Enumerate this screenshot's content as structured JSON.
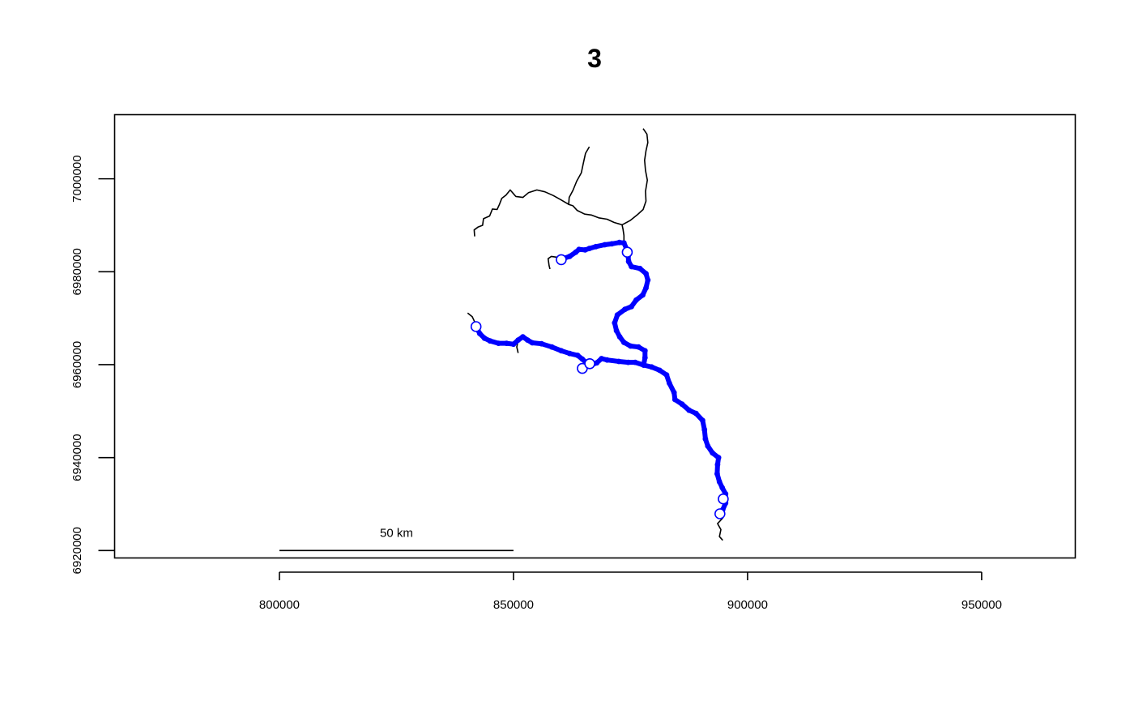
{
  "title": "3",
  "chart_data": {
    "type": "map",
    "title": "3",
    "xlim": [
      764800,
      970000
    ],
    "ylim": [
      6918400,
      7013800
    ],
    "x_ticks": [
      {
        "value": 800000,
        "label": "800000"
      },
      {
        "value": 850000,
        "label": "850000"
      },
      {
        "value": 900000,
        "label": "900000"
      },
      {
        "value": 950000,
        "label": "950000"
      }
    ],
    "y_ticks": [
      {
        "value": 6920000,
        "label": "6920000"
      },
      {
        "value": 6940000,
        "label": "6940000"
      },
      {
        "value": 6960000,
        "label": "6960000"
      },
      {
        "value": 6980000,
        "label": "6980000"
      },
      {
        "value": 7000000,
        "label": "7000000"
      }
    ],
    "scale_bar": {
      "x_start": 800000,
      "x_end": 850000,
      "y": 6920000,
      "label": "50 km"
    },
    "colors": {
      "river": "#000000",
      "highlight": "#0000ff",
      "site_fill": "#ffffff",
      "site_stroke": "#0000ff"
    },
    "rivers": [
      {
        "id": "east-branch",
        "points": [
          [
            894700,
            6922200
          ],
          [
            894000,
            6923000
          ],
          [
            894300,
            6924500
          ],
          [
            893600,
            6925800
          ],
          [
            894700,
            6927000
          ],
          [
            894800,
            6928500
          ],
          [
            895300,
            6930200
          ],
          [
            895300,
            6932200
          ],
          [
            894600,
            6933500
          ],
          [
            894000,
            6934800
          ],
          [
            893500,
            6936500
          ],
          [
            893600,
            6938500
          ],
          [
            893800,
            6940000
          ],
          [
            892500,
            6941000
          ],
          [
            891500,
            6942500
          ],
          [
            891000,
            6944000
          ],
          [
            890800,
            6946000
          ],
          [
            890400,
            6948000
          ],
          [
            889000,
            6949500
          ],
          [
            887500,
            6950200
          ],
          [
            886000,
            6951500
          ],
          [
            884500,
            6952500
          ],
          [
            884300,
            6954000
          ],
          [
            883300,
            6956000
          ],
          [
            882700,
            6957800
          ],
          [
            881200,
            6958800
          ],
          [
            879500,
            6959500
          ],
          [
            877800,
            6959900
          ],
          [
            878100,
            6961500
          ],
          [
            878100,
            6963000
          ],
          [
            876700,
            6963800
          ],
          [
            875000,
            6964000
          ],
          [
            873600,
            6964800
          ],
          [
            872700,
            6966000
          ],
          [
            872000,
            6967300
          ],
          [
            871600,
            6969000
          ],
          [
            872200,
            6970700
          ],
          [
            873800,
            6971900
          ],
          [
            875200,
            6972500
          ],
          [
            876200,
            6973900
          ],
          [
            877600,
            6975000
          ],
          [
            878300,
            6976500
          ],
          [
            878700,
            6978200
          ],
          [
            878300,
            6979600
          ],
          [
            877000,
            6980700
          ],
          [
            875200,
            6981100
          ],
          [
            874600,
            6982200
          ],
          [
            874500,
            6983300
          ],
          [
            873800,
            6984700
          ],
          [
            873600,
            6986200
          ],
          [
            873600,
            6987800
          ],
          [
            873400,
            6989100
          ],
          [
            873200,
            6990100
          ],
          [
            874900,
            6991000
          ],
          [
            876400,
            6992200
          ],
          [
            877700,
            6993400
          ],
          [
            878300,
            6995200
          ],
          [
            878200,
            6997300
          ],
          [
            878600,
            6999700
          ],
          [
            878200,
            7001800
          ],
          [
            878000,
            7004000
          ],
          [
            878300,
            7006000
          ],
          [
            878700,
            7007800
          ],
          [
            878500,
            7009600
          ],
          [
            877700,
            7010800
          ]
        ]
      },
      {
        "id": "north-branch",
        "points": [
          [
            873200,
            6990100
          ],
          [
            871500,
            6990600
          ],
          [
            870000,
            6991300
          ],
          [
            868200,
            6991600
          ],
          [
            866600,
            6992200
          ],
          [
            865200,
            6992400
          ],
          [
            863600,
            6993200
          ],
          [
            862700,
            6994200
          ],
          [
            861800,
            6994500
          ],
          [
            861900,
            6996000
          ],
          [
            862700,
            6997500
          ],
          [
            863500,
            6999500
          ],
          [
            864500,
            7001300
          ],
          [
            864900,
            7003300
          ],
          [
            865400,
            7005500
          ],
          [
            866200,
            7006900
          ]
        ]
      },
      {
        "id": "west-branch",
        "points": [
          [
            861800,
            6994500
          ],
          [
            860100,
            6995500
          ],
          [
            858500,
            6996400
          ],
          [
            856700,
            6997200
          ],
          [
            855000,
            6997600
          ],
          [
            853200,
            6997000
          ],
          [
            852000,
            6996000
          ],
          [
            850500,
            6996200
          ],
          [
            849300,
            6997600
          ],
          [
            848400,
            6996500
          ],
          [
            847500,
            6995800
          ],
          [
            847000,
            6994500
          ],
          [
            846500,
            6993400
          ],
          [
            845500,
            6993500
          ],
          [
            844900,
            6992000
          ],
          [
            843600,
            6991400
          ],
          [
            843400,
            6990000
          ],
          [
            842400,
            6989600
          ],
          [
            841600,
            6989000
          ],
          [
            841700,
            6987600
          ]
        ]
      },
      {
        "id": "left-tributary-stub",
        "points": [
          [
            860100,
            6983000
          ],
          [
            858100,
            6983300
          ],
          [
            857400,
            6982800
          ],
          [
            857600,
            6981300
          ],
          [
            857800,
            6980600
          ]
        ]
      },
      {
        "id": "southwest-branch",
        "points": [
          [
            877800,
            6959900
          ],
          [
            876000,
            6960500
          ],
          [
            874500,
            6960500
          ],
          [
            872500,
            6960700
          ],
          [
            870000,
            6961000
          ],
          [
            868800,
            6961300
          ],
          [
            867800,
            6960400
          ],
          [
            866800,
            6960000
          ],
          [
            865600,
            6960400
          ],
          [
            864700,
            6961200
          ],
          [
            863700,
            6962000
          ],
          [
            862000,
            6962400
          ],
          [
            860200,
            6963000
          ],
          [
            858200,
            6963800
          ],
          [
            856000,
            6964500
          ],
          [
            854000,
            6964700
          ],
          [
            853000,
            6965300
          ],
          [
            852000,
            6966000
          ],
          [
            851000,
            6965300
          ],
          [
            850000,
            6964400
          ],
          [
            848500,
            6964600
          ],
          [
            846800,
            6964600
          ],
          [
            845000,
            6965100
          ],
          [
            843800,
            6965700
          ],
          [
            842800,
            6966700
          ],
          [
            842300,
            6968000
          ],
          [
            841700,
            6969200
          ],
          [
            841200,
            6970300
          ],
          [
            840200,
            6971100
          ]
        ]
      },
      {
        "id": "southwest-tributary-stub",
        "points": [
          [
            851000,
            6965300
          ],
          [
            850700,
            6963800
          ],
          [
            851000,
            6962500
          ]
        ]
      }
    ],
    "highlighted_reaches": [
      {
        "id": "main-reach",
        "points": [
          [
            894700,
            6928800
          ],
          [
            895300,
            6930200
          ],
          [
            895300,
            6932200
          ],
          [
            894600,
            6933500
          ],
          [
            894000,
            6934800
          ],
          [
            893500,
            6936500
          ],
          [
            893600,
            6938500
          ],
          [
            893800,
            6940000
          ],
          [
            892500,
            6941000
          ],
          [
            891500,
            6942500
          ],
          [
            891000,
            6944000
          ],
          [
            890800,
            6946000
          ],
          [
            890400,
            6948000
          ],
          [
            889000,
            6949500
          ],
          [
            887500,
            6950200
          ],
          [
            886000,
            6951500
          ],
          [
            884500,
            6952500
          ],
          [
            884300,
            6954000
          ],
          [
            883300,
            6956000
          ],
          [
            882700,
            6957800
          ],
          [
            881200,
            6958800
          ],
          [
            879500,
            6959500
          ],
          [
            877800,
            6959900
          ],
          [
            878100,
            6961500
          ],
          [
            878100,
            6963000
          ],
          [
            876700,
            6963800
          ],
          [
            875000,
            6964000
          ],
          [
            873600,
            6964800
          ],
          [
            872700,
            6966000
          ],
          [
            872000,
            6967300
          ],
          [
            871600,
            6969000
          ],
          [
            872200,
            6970700
          ],
          [
            873800,
            6971900
          ],
          [
            875200,
            6972500
          ],
          [
            876200,
            6973900
          ],
          [
            877600,
            6975000
          ],
          [
            878300,
            6976500
          ],
          [
            878700,
            6978200
          ],
          [
            878300,
            6979600
          ],
          [
            877000,
            6980700
          ],
          [
            875200,
            6981100
          ],
          [
            874600,
            6982200
          ],
          [
            874500,
            6983300
          ]
        ]
      },
      {
        "id": "north-reach",
        "points": [
          [
            874300,
            6984600
          ],
          [
            873600,
            6986200
          ],
          [
            872600,
            6986300
          ],
          [
            871000,
            6986000
          ],
          [
            869500,
            6985800
          ],
          [
            867600,
            6985400
          ],
          [
            866200,
            6985000
          ],
          [
            865300,
            6984700
          ],
          [
            864000,
            6984800
          ],
          [
            863300,
            6984200
          ],
          [
            862000,
            6983300
          ],
          [
            860800,
            6982900
          ],
          [
            860100,
            6982800
          ]
        ]
      },
      {
        "id": "southwest-reach",
        "points": [
          [
            877800,
            6959900
          ],
          [
            876000,
            6960500
          ],
          [
            874500,
            6960500
          ],
          [
            872500,
            6960700
          ],
          [
            870000,
            6961000
          ],
          [
            868800,
            6961300
          ],
          [
            867800,
            6960400
          ],
          [
            866800,
            6960000
          ],
          [
            865600,
            6960400
          ],
          [
            864700,
            6961200
          ],
          [
            863700,
            6962000
          ],
          [
            862000,
            6962400
          ],
          [
            860200,
            6963000
          ],
          [
            858200,
            6963800
          ],
          [
            856000,
            6964500
          ],
          [
            854000,
            6964700
          ],
          [
            853000,
            6965300
          ],
          [
            852000,
            6966000
          ],
          [
            851000,
            6965300
          ],
          [
            850000,
            6964400
          ],
          [
            848500,
            6964600
          ],
          [
            846800,
            6964600
          ],
          [
            845000,
            6965100
          ],
          [
            843800,
            6965700
          ],
          [
            842800,
            6966700
          ],
          [
            842000,
            6968200
          ]
        ]
      }
    ],
    "site_markers": [
      {
        "id": "site-1",
        "x": 860200,
        "y": 6982600
      },
      {
        "id": "site-2",
        "x": 874300,
        "y": 6984200
      },
      {
        "id": "site-3",
        "x": 842000,
        "y": 6968200
      },
      {
        "id": "site-4",
        "x": 864700,
        "y": 6959200
      },
      {
        "id": "site-5",
        "x": 866300,
        "y": 6960200
      },
      {
        "id": "site-6",
        "x": 894800,
        "y": 6931100
      },
      {
        "id": "site-7",
        "x": 894100,
        "y": 6927900
      }
    ]
  }
}
